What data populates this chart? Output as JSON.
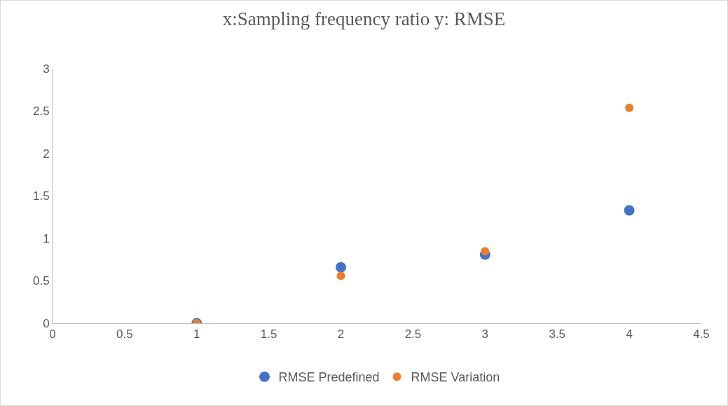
{
  "chart_data": {
    "type": "scatter",
    "title": "x:Sampling frequency ratio y: RMSE",
    "x": [
      1,
      2,
      3,
      4
    ],
    "series": [
      {
        "name": "RMSE Predefined",
        "color": "#4472c4",
        "values": [
          0,
          0.66,
          0.81,
          1.33
        ]
      },
      {
        "name": "RMSE Variation",
        "color": "#ed7d31",
        "values": [
          0,
          0.56,
          0.85,
          2.54
        ]
      }
    ],
    "xlim": [
      0,
      4.5
    ],
    "xticks": [
      0,
      0.5,
      1,
      1.5,
      2,
      2.5,
      3,
      3.5,
      4,
      4.5
    ],
    "ylim": [
      0,
      3
    ],
    "yticks": [
      0,
      0.5,
      1,
      1.5,
      2,
      2.5,
      3
    ],
    "grid": false,
    "legend": "bottom",
    "marker": "circle"
  }
}
